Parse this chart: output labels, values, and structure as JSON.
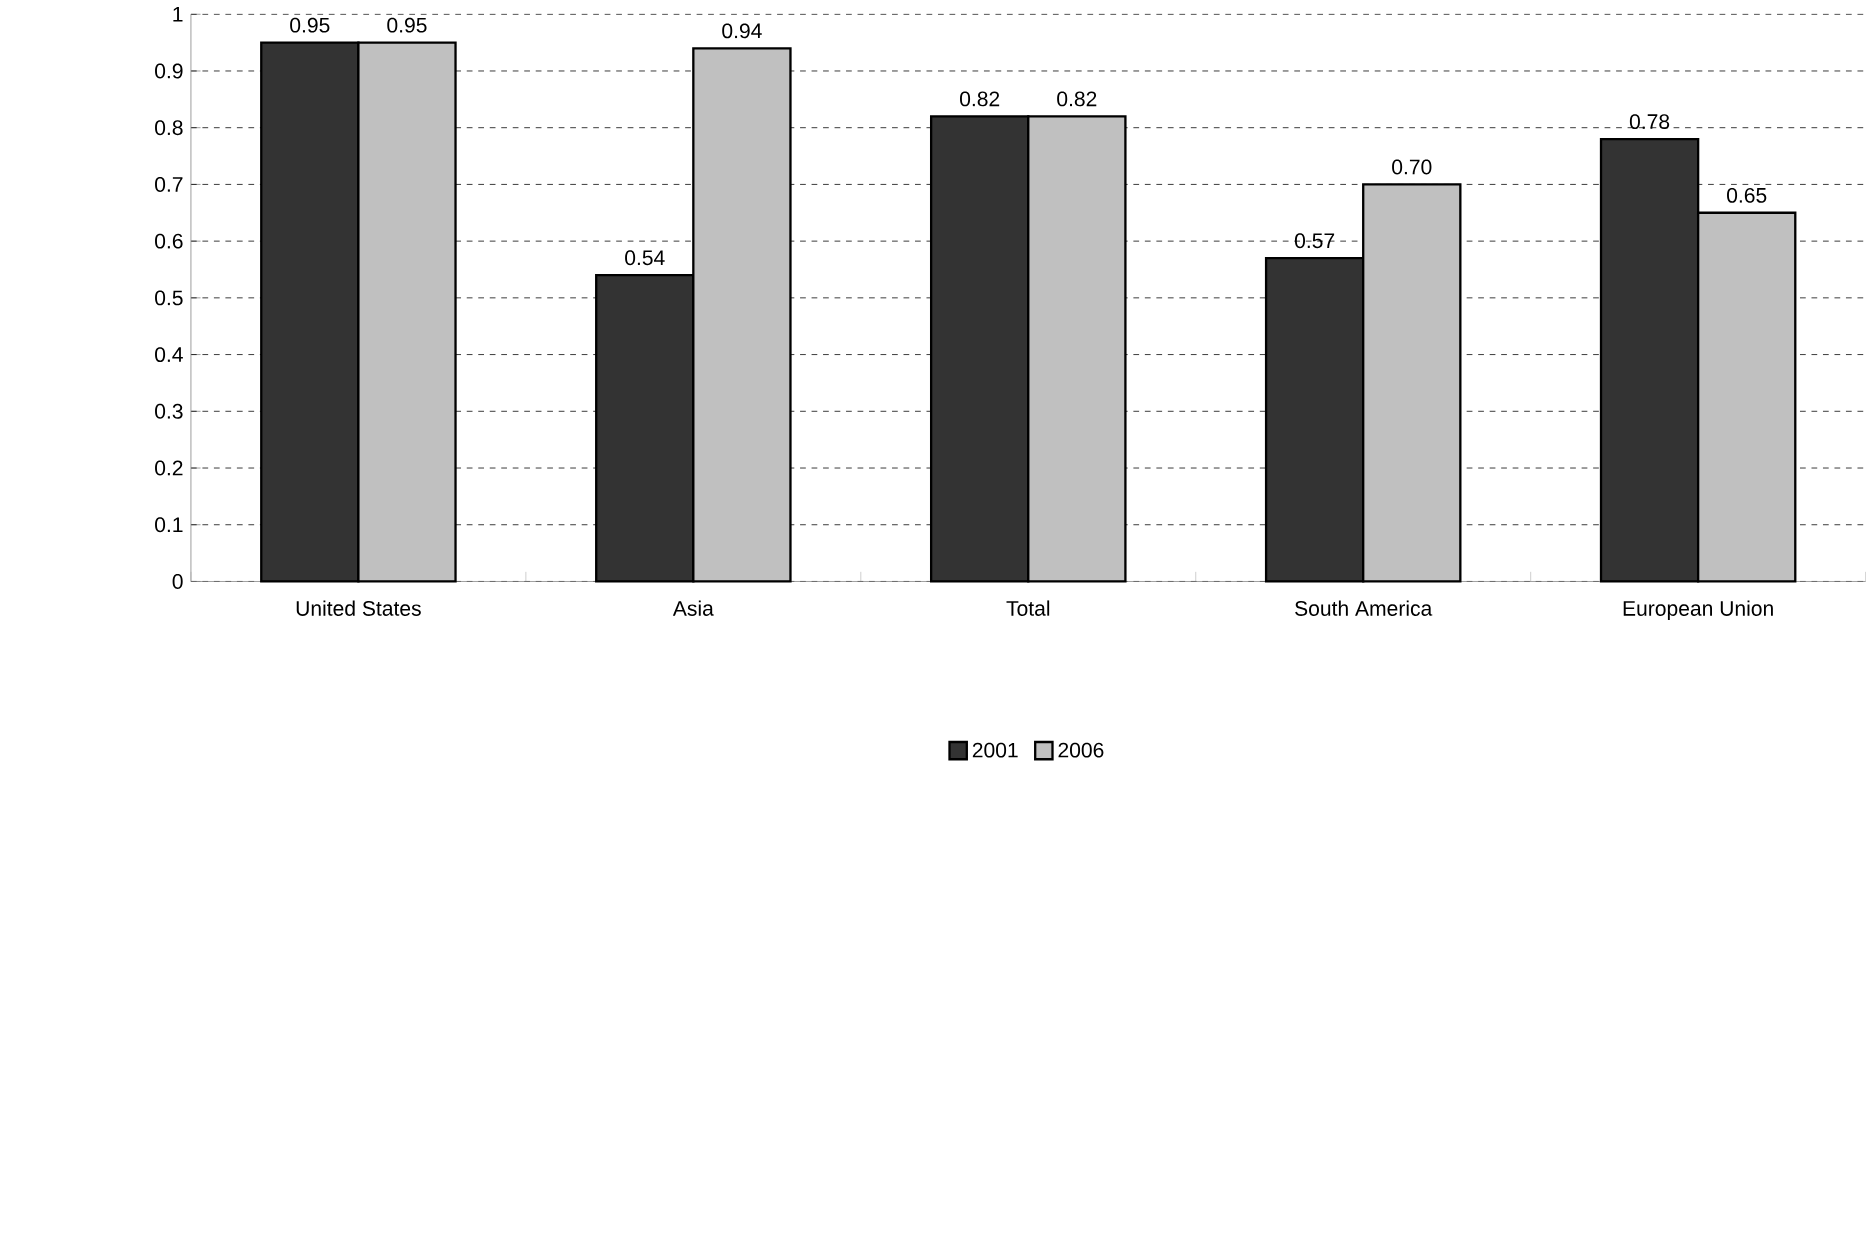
{
  "chart_data": {
    "type": "bar",
    "categories": [
      "United States",
      "Asia",
      "Total",
      "South America",
      "European Union"
    ],
    "series": [
      {
        "name": "2001",
        "color": "#333333",
        "values": [
          0.95,
          0.54,
          0.82,
          0.57,
          0.78
        ],
        "value_labels": [
          "0.95",
          "0.54",
          "0.82",
          "0.57",
          "0.78"
        ]
      },
      {
        "name": "2006",
        "color": "#c0c0c0",
        "values": [
          0.95,
          0.94,
          0.82,
          0.7,
          0.65
        ],
        "value_labels": [
          "0.95",
          "0.94",
          "0.82",
          "0.70",
          "0.65"
        ]
      }
    ],
    "ylim": [
      0,
      1
    ],
    "yticks": [
      0,
      0.1,
      0.2,
      0.3,
      0.4,
      0.5,
      0.6,
      0.7,
      0.8,
      0.9,
      1
    ],
    "grid": "y",
    "legend": "bottom"
  }
}
